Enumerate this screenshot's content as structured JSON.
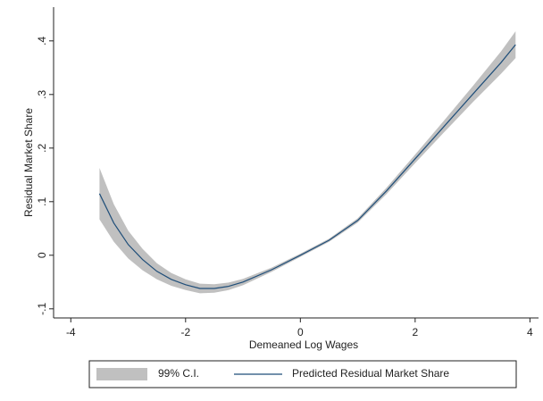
{
  "chart_data": {
    "type": "line-ci",
    "x_label": "Demeaned Log Wages",
    "y_label": "Residual Market Share",
    "x": [
      -3.5,
      -3.25,
      -3,
      -2.75,
      -2.5,
      -2.25,
      -2,
      -1.75,
      -1.5,
      -1.25,
      -1,
      -0.5,
      0,
      0.5,
      1,
      1.5,
      2,
      2.5,
      3,
      3.5,
      3.75
    ],
    "series": [
      {
        "name": "99% C.I.",
        "color": "#c0c0c0",
        "lower": [
          0.067,
          0.025,
          -0.006,
          -0.028,
          -0.045,
          -0.057,
          -0.065,
          -0.071,
          -0.07,
          -0.065,
          -0.056,
          -0.031,
          -0.003,
          0.025,
          0.061,
          0.114,
          0.172,
          0.229,
          0.285,
          0.339,
          0.368
        ],
        "upper": [
          0.163,
          0.095,
          0.046,
          0.012,
          -0.015,
          -0.033,
          -0.045,
          -0.053,
          -0.054,
          -0.051,
          -0.044,
          -0.023,
          0.003,
          0.031,
          0.069,
          0.126,
          0.188,
          0.251,
          0.315,
          0.381,
          0.418
        ]
      },
      {
        "name": "Predicted Residual Market Share",
        "color": "#1f4e79",
        "values": [
          0.115,
          0.06,
          0.02,
          -0.008,
          -0.03,
          -0.045,
          -0.055,
          -0.062,
          -0.062,
          -0.058,
          -0.05,
          -0.027,
          0,
          0.028,
          0.065,
          0.12,
          0.18,
          0.24,
          0.3,
          0.36,
          0.393
        ]
      }
    ],
    "xlim": [
      -4.3,
      4.15
    ],
    "ylim": [
      -0.117,
      0.463
    ],
    "xticks": [
      -4,
      -2,
      0,
      2,
      4
    ],
    "yticks": [
      {
        "value": -0.1,
        "label": "-.1"
      },
      0,
      {
        "value": 0.1,
        "label": ".1"
      },
      {
        "value": 0.2,
        "label": ".2"
      },
      {
        "value": 0.3,
        "label": ".3"
      },
      {
        "value": 0.4,
        "label": ".4"
      }
    ],
    "legend": "bottom"
  }
}
